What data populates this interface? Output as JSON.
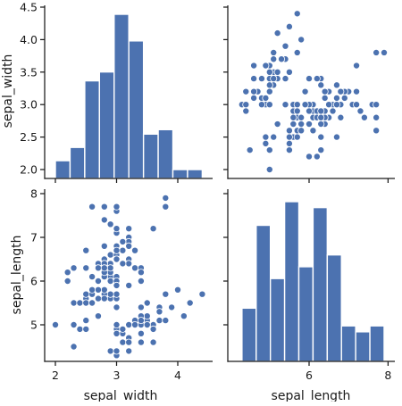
{
  "chart_data": [
    {
      "type": "bar",
      "panel": "sepal_width-vs-sepal_width",
      "x_variable": "sepal_width",
      "bin_edges": [
        2.0,
        2.24,
        2.48,
        2.72,
        2.96,
        3.2,
        3.44,
        3.68,
        3.92,
        4.16,
        4.4
      ],
      "values": [
        4,
        7,
        22,
        24,
        37,
        31,
        10,
        11,
        2,
        2
      ],
      "xlim": [
        1.8,
        4.6
      ],
      "yticks": [
        2.0,
        2.5,
        3.0,
        3.5,
        4.0,
        4.5
      ],
      "ylabel": "sepal_width",
      "shared_ylim": [
        1.88,
        4.52
      ]
    },
    {
      "type": "scatter",
      "panel": "sepal_length-vs-sepal_width",
      "xlabel": "sepal_length",
      "ylabel": "sepal_width",
      "xlim": [
        4.1,
        8.15
      ],
      "ylim": [
        1.88,
        4.52
      ],
      "points": [
        [
          5.1,
          3.5
        ],
        [
          4.9,
          3.0
        ],
        [
          4.7,
          3.2
        ],
        [
          4.6,
          3.1
        ],
        [
          5.0,
          3.6
        ],
        [
          5.4,
          3.9
        ],
        [
          4.6,
          3.4
        ],
        [
          5.0,
          3.4
        ],
        [
          4.4,
          2.9
        ],
        [
          4.9,
          3.1
        ],
        [
          5.4,
          3.7
        ],
        [
          4.8,
          3.4
        ],
        [
          4.8,
          3.0
        ],
        [
          4.3,
          3.0
        ],
        [
          5.8,
          4.0
        ],
        [
          5.7,
          4.4
        ],
        [
          5.4,
          3.9
        ],
        [
          5.1,
          3.5
        ],
        [
          5.7,
          3.8
        ],
        [
          5.1,
          3.8
        ],
        [
          5.4,
          3.4
        ],
        [
          5.1,
          3.7
        ],
        [
          4.6,
          3.6
        ],
        [
          5.1,
          3.3
        ],
        [
          4.8,
          3.4
        ],
        [
          5.0,
          3.0
        ],
        [
          5.0,
          3.4
        ],
        [
          5.2,
          3.5
        ],
        [
          5.2,
          3.4
        ],
        [
          4.7,
          3.2
        ],
        [
          4.8,
          3.1
        ],
        [
          5.4,
          3.4
        ],
        [
          5.2,
          4.1
        ],
        [
          5.5,
          4.2
        ],
        [
          4.9,
          3.1
        ],
        [
          5.0,
          3.2
        ],
        [
          5.5,
          3.5
        ],
        [
          4.9,
          3.6
        ],
        [
          4.4,
          3.0
        ],
        [
          5.1,
          3.4
        ],
        [
          5.0,
          3.5
        ],
        [
          4.5,
          2.3
        ],
        [
          4.4,
          3.2
        ],
        [
          5.0,
          3.5
        ],
        [
          5.1,
          3.8
        ],
        [
          4.8,
          3.0
        ],
        [
          5.1,
          3.8
        ],
        [
          4.6,
          3.2
        ],
        [
          5.3,
          3.7
        ],
        [
          5.0,
          3.3
        ],
        [
          7.0,
          3.2
        ],
        [
          6.4,
          3.2
        ],
        [
          6.9,
          3.1
        ],
        [
          5.5,
          2.3
        ],
        [
          6.5,
          2.8
        ],
        [
          5.7,
          2.8
        ],
        [
          6.3,
          3.3
        ],
        [
          4.9,
          2.4
        ],
        [
          6.6,
          2.9
        ],
        [
          5.2,
          2.7
        ],
        [
          5.0,
          2.0
        ],
        [
          5.9,
          3.0
        ],
        [
          6.0,
          2.2
        ],
        [
          6.1,
          2.9
        ],
        [
          5.6,
          2.9
        ],
        [
          6.7,
          3.1
        ],
        [
          5.6,
          3.0
        ],
        [
          5.8,
          2.7
        ],
        [
          6.2,
          2.2
        ],
        [
          5.6,
          2.5
        ],
        [
          5.9,
          3.2
        ],
        [
          6.1,
          2.8
        ],
        [
          6.3,
          2.5
        ],
        [
          6.1,
          2.8
        ],
        [
          6.4,
          2.9
        ],
        [
          6.6,
          3.0
        ],
        [
          6.8,
          2.8
        ],
        [
          6.7,
          3.0
        ],
        [
          6.0,
          2.9
        ],
        [
          5.7,
          2.6
        ],
        [
          5.5,
          2.4
        ],
        [
          5.5,
          2.4
        ],
        [
          5.8,
          2.7
        ],
        [
          6.0,
          2.7
        ],
        [
          5.4,
          3.0
        ],
        [
          6.0,
          3.4
        ],
        [
          6.7,
          3.1
        ],
        [
          6.3,
          2.3
        ],
        [
          5.6,
          3.0
        ],
        [
          5.5,
          2.5
        ],
        [
          5.5,
          2.6
        ],
        [
          6.1,
          3.0
        ],
        [
          5.8,
          2.6
        ],
        [
          5.0,
          2.3
        ],
        [
          5.6,
          2.7
        ],
        [
          5.7,
          3.0
        ],
        [
          5.7,
          2.9
        ],
        [
          6.2,
          2.9
        ],
        [
          5.1,
          2.5
        ],
        [
          5.7,
          2.8
        ],
        [
          6.3,
          3.3
        ],
        [
          5.8,
          2.7
        ],
        [
          7.1,
          3.0
        ],
        [
          6.3,
          2.9
        ],
        [
          6.5,
          3.0
        ],
        [
          7.6,
          3.0
        ],
        [
          4.9,
          2.5
        ],
        [
          7.3,
          2.9
        ],
        [
          6.7,
          2.5
        ],
        [
          7.2,
          3.6
        ],
        [
          6.5,
          3.2
        ],
        [
          6.4,
          2.7
        ],
        [
          6.8,
          3.0
        ],
        [
          5.7,
          2.5
        ],
        [
          5.8,
          2.8
        ],
        [
          6.4,
          3.2
        ],
        [
          6.5,
          3.0
        ],
        [
          7.7,
          3.8
        ],
        [
          7.7,
          2.6
        ],
        [
          6.0,
          2.2
        ],
        [
          6.9,
          3.2
        ],
        [
          5.6,
          2.8
        ],
        [
          7.7,
          2.8
        ],
        [
          6.3,
          2.7
        ],
        [
          6.7,
          3.3
        ],
        [
          7.2,
          3.2
        ],
        [
          6.2,
          2.8
        ],
        [
          6.1,
          3.0
        ],
        [
          6.4,
          2.8
        ],
        [
          7.2,
          3.0
        ],
        [
          7.4,
          2.8
        ],
        [
          7.9,
          3.8
        ],
        [
          6.4,
          2.8
        ],
        [
          6.3,
          2.8
        ],
        [
          6.1,
          2.6
        ],
        [
          7.7,
          3.0
        ],
        [
          6.3,
          3.4
        ],
        [
          6.4,
          3.1
        ],
        [
          6.0,
          3.0
        ],
        [
          6.9,
          3.1
        ],
        [
          6.7,
          3.1
        ],
        [
          6.9,
          3.1
        ],
        [
          5.8,
          2.7
        ],
        [
          6.8,
          3.2
        ],
        [
          6.7,
          3.3
        ],
        [
          6.7,
          3.0
        ],
        [
          6.3,
          2.5
        ],
        [
          6.5,
          3.0
        ],
        [
          6.2,
          3.4
        ],
        [
          5.9,
          3.0
        ]
      ]
    },
    {
      "type": "scatter",
      "panel": "sepal_width-vs-sepal_length",
      "xlabel": "sepal_width",
      "ylabel": "sepal_length",
      "xlim": [
        1.8,
        4.6
      ],
      "ylim": [
        4.1,
        8.15
      ],
      "xticks": [
        2,
        3,
        4
      ],
      "yticks": [
        5,
        6,
        7,
        8
      ],
      "uses_same_points_transposed": true
    },
    {
      "type": "bar",
      "panel": "sepal_length-vs-sepal_length",
      "x_variable": "sepal_length",
      "bin_edges": [
        4.3,
        4.66,
        5.02,
        5.38,
        5.74,
        6.1,
        6.46,
        6.82,
        7.18,
        7.54,
        7.9
      ],
      "values": [
        9,
        23,
        14,
        27,
        16,
        26,
        18,
        6,
        5,
        6
      ],
      "xlim": [
        4.1,
        8.15
      ],
      "xticks": [
        6,
        8
      ],
      "xlabel": "sepal_length"
    }
  ],
  "labels": {
    "row0_ylabel": "sepal_width",
    "row1_ylabel": "sepal_length",
    "col0_xlabel": "sepal_width",
    "col1_xlabel": "sepal_length"
  },
  "ticks": {
    "sepal_width_y": [
      "2.0",
      "2.5",
      "3.0",
      "3.5",
      "4.0",
      "4.5"
    ],
    "sepal_length_y": [
      "5",
      "6",
      "7",
      "8"
    ],
    "sepal_width_x": [
      "2",
      "3",
      "4"
    ],
    "sepal_length_x": [
      "6",
      "8"
    ]
  },
  "colors": {
    "marks": "#4c72b0",
    "axes": "#1a1a1a",
    "background": "#ffffff"
  }
}
